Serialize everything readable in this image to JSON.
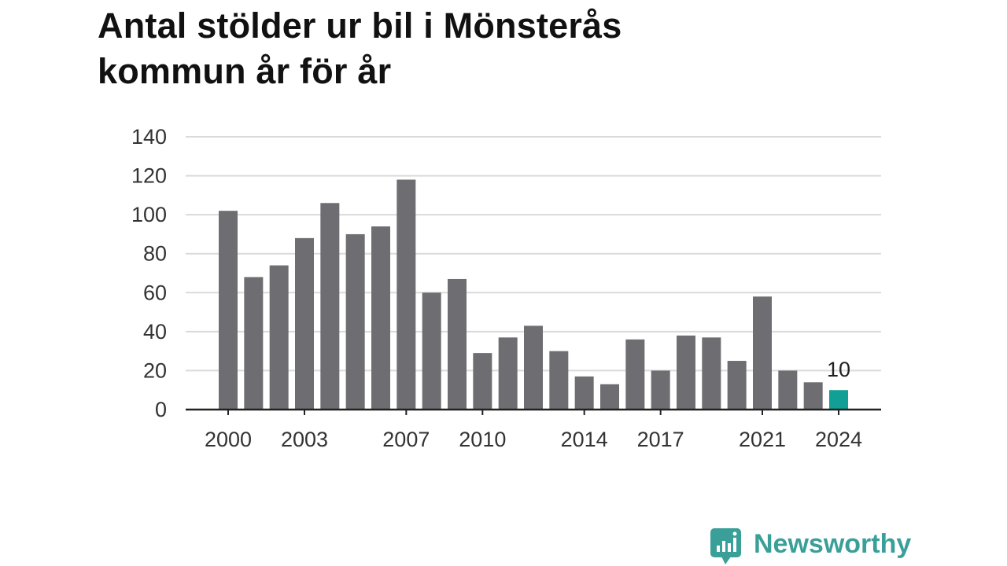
{
  "colors": {
    "bar": "#6e6d72",
    "highlight": "#12a096",
    "grid": "#dadada",
    "axis": "#222222",
    "brand": "#3a9f98"
  },
  "brand": {
    "name": "Newsworthy",
    "icon": "newsworthy-logo-icon"
  },
  "chart_data": {
    "type": "bar",
    "title": "Antal stölder ur bil i Mönsterås kommun år för år",
    "categories": [
      "2000",
      "2001",
      "2002",
      "2003",
      "2004",
      "2005",
      "2006",
      "2007",
      "2008",
      "2009",
      "2010",
      "2011",
      "2012",
      "2013",
      "2014",
      "2015",
      "2016",
      "2017",
      "2018",
      "2019",
      "2020",
      "2021",
      "2022",
      "2023",
      "2024"
    ],
    "values": [
      102,
      68,
      74,
      88,
      106,
      90,
      94,
      118,
      60,
      67,
      29,
      37,
      43,
      30,
      17,
      13,
      36,
      20,
      38,
      37,
      25,
      58,
      20,
      14,
      10
    ],
    "x_tick_labels": [
      "2000",
      "2003",
      "2007",
      "2010",
      "2014",
      "2017",
      "2021",
      "2024"
    ],
    "y_ticks": [
      0,
      20,
      40,
      60,
      80,
      100,
      120,
      140
    ],
    "ylim": [
      0,
      140
    ],
    "highlight_category": "2024",
    "data_labels": [
      {
        "category": "2024",
        "label": "10"
      }
    ],
    "grid": true,
    "legend": "none"
  }
}
